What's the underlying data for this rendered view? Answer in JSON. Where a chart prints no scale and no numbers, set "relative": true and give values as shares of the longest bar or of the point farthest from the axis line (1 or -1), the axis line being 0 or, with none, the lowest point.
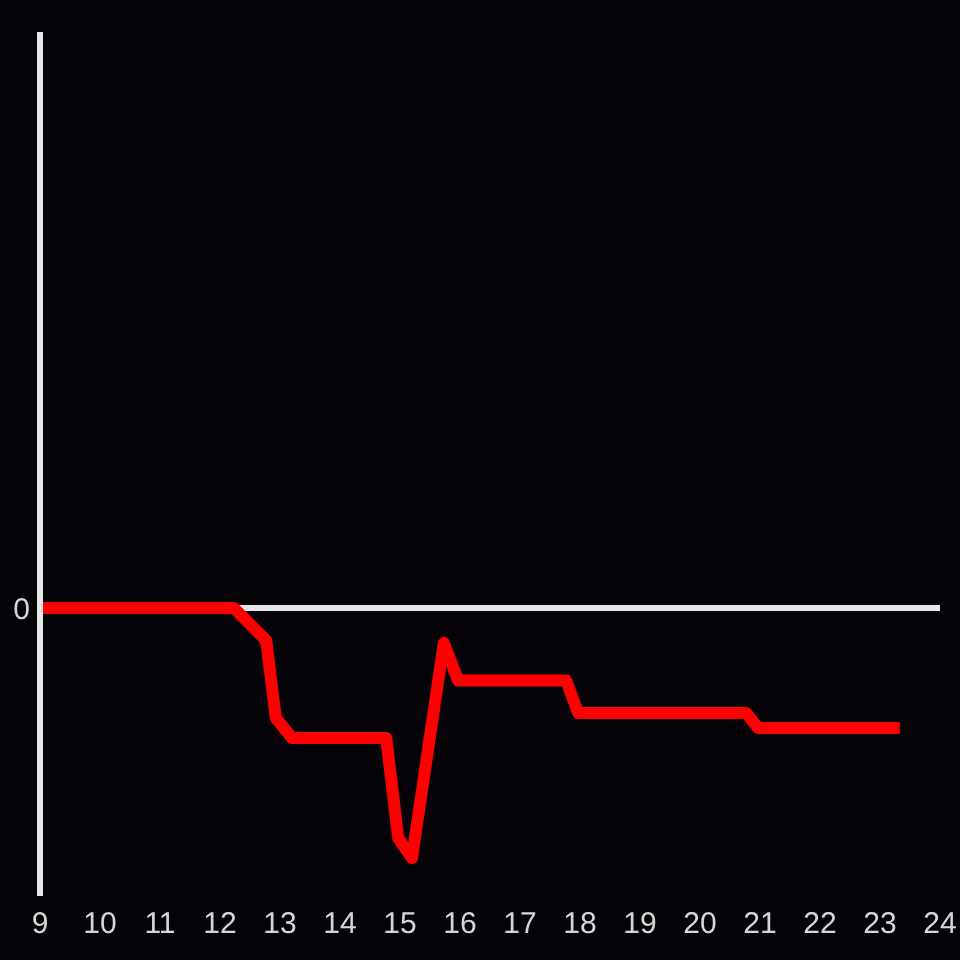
{
  "chart_data": {
    "type": "line",
    "relative": true,
    "x": [
      9,
      12.23,
      12.77,
      12.93,
      13.2,
      14.77,
      14.97,
      15.2,
      15.73,
      15.97,
      17.77,
      17.97,
      20.77,
      20.97,
      23.33
    ],
    "values": [
      0,
      0,
      -0.13,
      -0.44,
      -0.52,
      -0.52,
      -0.92,
      -1,
      -0.14,
      -0.29,
      -0.29,
      -0.42,
      -0.42,
      -0.48,
      -0.48
    ],
    "color": "#ff0000",
    "xlim": [
      9,
      24
    ],
    "xticks": [
      9,
      10,
      11,
      12,
      13,
      14,
      15,
      16,
      17,
      18,
      19,
      20,
      21,
      22,
      23,
      24
    ],
    "ref_lines": [
      {
        "axis": "y",
        "value": 0,
        "label": "0",
        "color": "#e6e6e6"
      }
    ]
  }
}
